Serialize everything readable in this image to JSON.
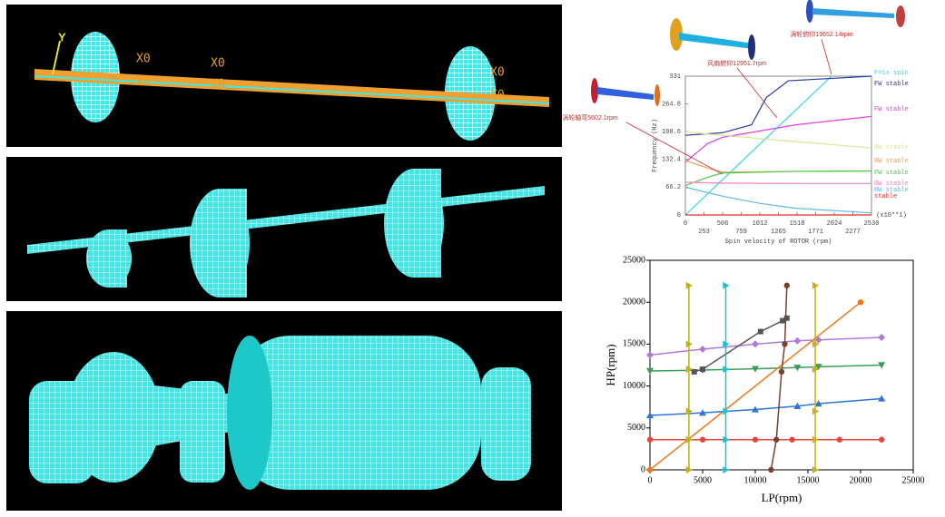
{
  "fem_labels": [
    "Y"
  ],
  "chart_data": [
    {
      "type": "line",
      "xlabel": "Spin velocity of ROTOR  (rpm)",
      "ylabel": "Frequency (Hz)",
      "x_multiplier": "(x10**1)",
      "xlim": [
        0,
        2530
      ],
      "ylim": [
        0,
        331
      ],
      "xticks": [
        0,
        253,
        506,
        759,
        1012,
        1265,
        1518,
        1771,
        2024,
        2277,
        2530
      ],
      "yticks": [
        0,
        66.2,
        132.4,
        198.6,
        264.8,
        331
      ],
      "annotations": [
        "风扇俯仰12951.7rpm",
        "涡轮俯仰19652.14rpm",
        "涡轮轴弯5602.1rpm"
      ],
      "series": [
        {
          "name": "F=1x spin",
          "color": "#33d6e8",
          "x": [
            0,
            1986
          ],
          "values": [
            0,
            331
          ]
        },
        {
          "name": "FW stable",
          "color": "#2a3aa8",
          "x": [
            0,
            500,
            900,
            1100,
            1400,
            2530
          ],
          "values": [
            190,
            196,
            215,
            280,
            320,
            331
          ]
        },
        {
          "name": "FW stable",
          "color": "#e040e0",
          "x": [
            0,
            300,
            500,
            1500,
            2530
          ],
          "values": [
            126,
            170,
            185,
            215,
            235
          ]
        },
        {
          "name": "BW stable",
          "color": "#d8e890",
          "x": [
            0,
            500,
            1500,
            2530
          ],
          "values": [
            198,
            190,
            175,
            160
          ]
        },
        {
          "name": "BW stable",
          "color": "#f0a050",
          "x": [
            0,
            300,
            500,
            1500,
            2530
          ],
          "values": [
            130,
            112,
            102,
            104,
            105
          ]
        },
        {
          "name": "FW stable",
          "color": "#50c850",
          "x": [
            0,
            300,
            500,
            1500,
            2530
          ],
          "values": [
            70,
            90,
            100,
            104,
            105
          ]
        },
        {
          "name": "BW stable",
          "color": "#f080c0",
          "x": [
            0,
            500,
            1500,
            2530
          ],
          "values": [
            78,
            76,
            75,
            75
          ]
        },
        {
          "name": "BW stable",
          "color": "#60b8e8",
          "x": [
            0,
            500,
            1000,
            1500,
            2530
          ],
          "values": [
            66,
            45,
            28,
            16,
            5
          ]
        },
        {
          "name": "stable",
          "color": "#e03030",
          "x": [
            0,
            2530
          ],
          "values": [
            0,
            0
          ]
        }
      ]
    },
    {
      "type": "line",
      "xlabel": "LP(rpm)",
      "ylabel": "HP(rpm)",
      "xlim": [
        0,
        25000
      ],
      "ylim": [
        0,
        25000
      ],
      "xticks": [
        0,
        5000,
        10000,
        15000,
        20000,
        25000
      ],
      "yticks": [
        0,
        5000,
        10000,
        15000,
        20000,
        25000
      ],
      "series": [
        {
          "color": "#e8453c",
          "marker": "circle",
          "x": [
            0,
            5000,
            10000,
            13500,
            18000,
            22000
          ],
          "values": [
            3600,
            3600,
            3600,
            3600,
            3600,
            3600
          ]
        },
        {
          "color": "#2f76d0",
          "marker": "triangle",
          "x": [
            0,
            5000,
            10000,
            14000,
            16000,
            22000
          ],
          "values": [
            6500,
            6800,
            7200,
            7600,
            7900,
            8500
          ]
        },
        {
          "color": "#3c9c5c",
          "marker": "triangle-down",
          "x": [
            0,
            5000,
            10000,
            14000,
            16000,
            22000
          ],
          "values": [
            11800,
            11900,
            12050,
            12200,
            12300,
            12500
          ]
        },
        {
          "color": "#b07ad8",
          "marker": "diamond",
          "x": [
            0,
            5000,
            10000,
            14000,
            16000,
            22000
          ],
          "values": [
            13700,
            14400,
            15000,
            15400,
            15500,
            15800
          ]
        },
        {
          "color": "#ec7a1c",
          "marker": "circle",
          "x": [
            0,
            20000
          ],
          "values": [
            0,
            20000
          ]
        },
        {
          "color": "#555555",
          "marker": "square",
          "x": [
            4200,
            5000,
            10500,
            12600,
            13000
          ],
          "values": [
            11700,
            12000,
            16500,
            17800,
            18100
          ]
        },
        {
          "color": "#7a4030",
          "marker": "circle",
          "x": [
            11500,
            12000,
            12500,
            12800,
            13000
          ],
          "values": [
            0,
            3600,
            11700,
            15000,
            22000
          ]
        },
        {
          "color": "#c0b020",
          "marker": "triangle-right",
          "x": [
            3700,
            3700,
            3700,
            3700,
            3700,
            3700
          ],
          "values": [
            0,
            3600,
            7000,
            12000,
            15000,
            22000
          ]
        },
        {
          "color": "#20c0d0",
          "marker": "triangle-right",
          "x": [
            7200,
            7200,
            7200,
            7200,
            7200,
            7200
          ],
          "values": [
            0,
            3600,
            7000,
            12000,
            15000,
            22000
          ]
        },
        {
          "color": "#c8b020",
          "marker": "triangle-right",
          "x": [
            15700,
            15700,
            15700,
            15700,
            15700,
            15700
          ],
          "values": [
            0,
            3600,
            7000,
            12000,
            15000,
            22000
          ]
        }
      ]
    }
  ]
}
